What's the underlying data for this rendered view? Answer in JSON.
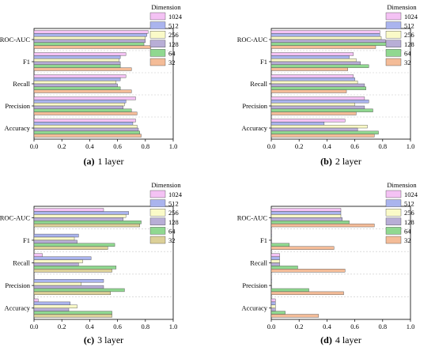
{
  "chart_data": [
    {
      "type": "bar",
      "orientation": "horizontal",
      "caption_label": "(a)",
      "caption_text": "1 layer",
      "categories": [
        "ROC-AUC",
        "F1",
        "Recall",
        "Precision",
        "Accuracy"
      ],
      "xlim": [
        0,
        1.0
      ],
      "xticks": [
        "0.0",
        "0.2",
        "0.4",
        "0.6",
        "0.8",
        "1.0"
      ],
      "legend_title": "Dimension",
      "series": [
        {
          "name": "1024",
          "color": "#f4c2f4",
          "values": [
            0.82,
            0.66,
            0.66,
            0.73,
            0.73
          ]
        },
        {
          "name": "512",
          "color": "#aab4ee",
          "values": [
            0.81,
            0.62,
            0.62,
            0.66,
            0.71
          ]
        },
        {
          "name": "256",
          "color": "#fafac8",
          "values": [
            0.8,
            0.61,
            0.59,
            0.65,
            0.74
          ]
        },
        {
          "name": "128",
          "color": "#b8aed6",
          "values": [
            0.8,
            0.62,
            0.6,
            0.64,
            0.75
          ]
        },
        {
          "name": "64",
          "color": "#90d890",
          "values": [
            0.79,
            0.62,
            0.62,
            0.7,
            0.76
          ]
        },
        {
          "name": "32",
          "color": "#f4bc98",
          "values": [
            0.84,
            0.7,
            0.7,
            0.74,
            0.77
          ]
        }
      ]
    },
    {
      "type": "bar",
      "orientation": "horizontal",
      "caption_label": "(b)",
      "caption_text": "2 layer",
      "categories": [
        "ROC-AUC",
        "F1",
        "Recall",
        "Precision",
        "Accuracy"
      ],
      "xlim": [
        0,
        1.0
      ],
      "xticks": [
        "0.0",
        "0.2",
        "0.4",
        "0.6",
        "0.8",
        "1.0"
      ],
      "legend_title": "Dimension",
      "series": [
        {
          "name": "1024",
          "color": "#f4c2f4",
          "values": [
            0.78,
            0.59,
            0.59,
            0.67,
            0.53
          ]
        },
        {
          "name": "512",
          "color": "#aab4ee",
          "values": [
            0.78,
            0.56,
            0.6,
            0.7,
            0.38
          ]
        },
        {
          "name": "256",
          "color": "#fafac8",
          "values": [
            0.79,
            0.61,
            0.62,
            0.6,
            0.69
          ]
        },
        {
          "name": "128",
          "color": "#b8aed6",
          "values": [
            0.82,
            0.64,
            0.67,
            0.67,
            0.62
          ]
        },
        {
          "name": "64",
          "color": "#90d890",
          "values": [
            0.83,
            0.7,
            0.68,
            0.73,
            0.77
          ]
        },
        {
          "name": "32",
          "color": "#f4bc98",
          "values": [
            0.75,
            0.55,
            0.54,
            0.61,
            0.74
          ]
        }
      ]
    },
    {
      "type": "bar",
      "orientation": "horizontal",
      "caption_label": "(c)",
      "caption_text": "3 layer",
      "categories": [
        "ROC-AUC",
        "F1",
        "Recall",
        "Precision",
        "Accuracy"
      ],
      "xlim": [
        0,
        1.0
      ],
      "xticks": [
        "0.0",
        "0.2",
        "0.4",
        "0.6",
        "0.8",
        "1.0"
      ],
      "legend_title": "Dimension",
      "series": [
        {
          "name": "1024",
          "color": "#f4c2f4",
          "values": [
            0.5,
            0.0,
            0.06,
            0.0,
            0.03
          ]
        },
        {
          "name": "512",
          "color": "#aab4ee",
          "values": [
            0.68,
            0.32,
            0.41,
            0.5,
            0.26
          ]
        },
        {
          "name": "256",
          "color": "#fafac8",
          "values": [
            0.66,
            0.29,
            0.35,
            0.34,
            0.31
          ]
        },
        {
          "name": "128",
          "color": "#b8aed6",
          "values": [
            0.64,
            0.31,
            0.32,
            0.5,
            0.25
          ]
        },
        {
          "name": "64",
          "color": "#90d890",
          "values": [
            0.77,
            0.58,
            0.59,
            0.65,
            0.56
          ]
        },
        {
          "name": "32",
          "color": "#dcd098",
          "values": [
            0.76,
            0.53,
            0.56,
            0.55,
            0.56
          ]
        }
      ]
    },
    {
      "type": "bar",
      "orientation": "horizontal",
      "caption_label": "(d)",
      "caption_text": "4 layer",
      "categories": [
        "ROC-AUC",
        "F1",
        "Recall",
        "Precision",
        "Accuracy"
      ],
      "xlim": [
        0,
        1.0
      ],
      "xticks": [
        "0.0",
        "0.2",
        "0.4",
        "0.6",
        "0.8",
        "1.0"
      ],
      "legend_title": "Dimension",
      "series": [
        {
          "name": "1024",
          "color": "#f4c2f4",
          "values": [
            0.5,
            0.0,
            0.06,
            0.0,
            0.03
          ]
        },
        {
          "name": "512",
          "color": "#aab4ee",
          "values": [
            0.5,
            0.0,
            0.06,
            0.0,
            0.03
          ]
        },
        {
          "name": "256",
          "color": "#fafac8",
          "values": [
            0.5,
            0.0,
            0.06,
            0.0,
            0.03
          ]
        },
        {
          "name": "128",
          "color": "#b8aed6",
          "values": [
            0.51,
            0.0,
            0.06,
            0.0,
            0.03
          ]
        },
        {
          "name": "64",
          "color": "#90d890",
          "values": [
            0.56,
            0.13,
            0.19,
            0.27,
            0.1
          ]
        },
        {
          "name": "32",
          "color": "#f4bc98",
          "values": [
            0.74,
            0.45,
            0.53,
            0.52,
            0.34
          ]
        }
      ]
    }
  ]
}
